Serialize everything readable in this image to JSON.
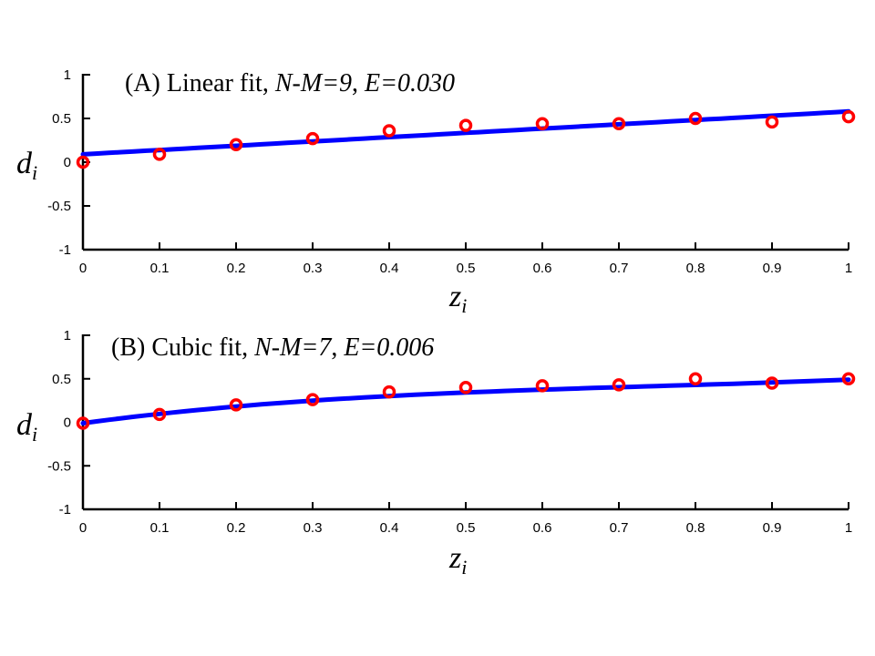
{
  "chart_data": [
    {
      "id": "A",
      "type": "scatter",
      "title_parts": [
        "(A) Linear fit, ",
        "N-M=9",
        ", ",
        "E=0.030"
      ],
      "xlabel": {
        "main": "z",
        "sub": "i"
      },
      "ylabel": {
        "main": "d",
        "sub": "i"
      },
      "xlim": [
        0,
        1
      ],
      "ylim": [
        -1,
        1
      ],
      "xticks": [
        0,
        0.1,
        0.2,
        0.3,
        0.4,
        0.5,
        0.6,
        0.7,
        0.8,
        0.9,
        1
      ],
      "xtick_labels": [
        "0",
        "0.1",
        "0.2",
        "0.3",
        "0.4",
        "0.5",
        "0.6",
        "0.7",
        "0.8",
        "0.9",
        "1"
      ],
      "yticks": [
        -1,
        -0.5,
        0,
        0.5,
        1
      ],
      "ytick_labels": [
        "-1",
        "-0.5",
        "0",
        "0.5",
        "1"
      ],
      "grid": false,
      "series": [
        {
          "kind": "points",
          "marker": "circle",
          "color": "#ff0000",
          "x": [
            0,
            0.1,
            0.2,
            0.3,
            0.4,
            0.5,
            0.6,
            0.7,
            0.8,
            0.9,
            1
          ],
          "y": [
            0.0,
            0.09,
            0.2,
            0.27,
            0.36,
            0.42,
            0.44,
            0.44,
            0.5,
            0.46,
            0.52
          ]
        },
        {
          "kind": "fit-line",
          "color": "#0000ff",
          "fit": "linear",
          "coefficients": [
            0.09,
            0.49
          ]
        }
      ]
    },
    {
      "id": "B",
      "type": "scatter",
      "title_parts": [
        "(B) Cubic fit, ",
        "N-M=7",
        ", ",
        "E=0.006"
      ],
      "xlabel": {
        "main": "z",
        "sub": "i"
      },
      "ylabel": {
        "main": "d",
        "sub": "i"
      },
      "xlim": [
        0,
        1
      ],
      "ylim": [
        -1,
        1
      ],
      "xticks": [
        0,
        0.1,
        0.2,
        0.3,
        0.4,
        0.5,
        0.6,
        0.7,
        0.8,
        0.9,
        1
      ],
      "xtick_labels": [
        "0",
        "0.1",
        "0.2",
        "0.3",
        "0.4",
        "0.5",
        "0.6",
        "0.7",
        "0.8",
        "0.9",
        "1"
      ],
      "yticks": [
        -1,
        -0.5,
        0,
        0.5,
        1
      ],
      "ytick_labels": [
        "-1",
        "-0.5",
        "0",
        "0.5",
        "1"
      ],
      "grid": false,
      "series": [
        {
          "kind": "points",
          "marker": "circle",
          "color": "#ff0000",
          "x": [
            0,
            0.1,
            0.2,
            0.3,
            0.4,
            0.5,
            0.6,
            0.7,
            0.8,
            0.9,
            1
          ],
          "y": [
            -0.01,
            0.09,
            0.2,
            0.26,
            0.35,
            0.4,
            0.42,
            0.43,
            0.5,
            0.45,
            0.5
          ]
        },
        {
          "kind": "fit-line",
          "color": "#0000ff",
          "fit": "cubic",
          "coefficients": [
            -0.01,
            1.18,
            -1.22,
            0.54
          ]
        }
      ]
    }
  ]
}
